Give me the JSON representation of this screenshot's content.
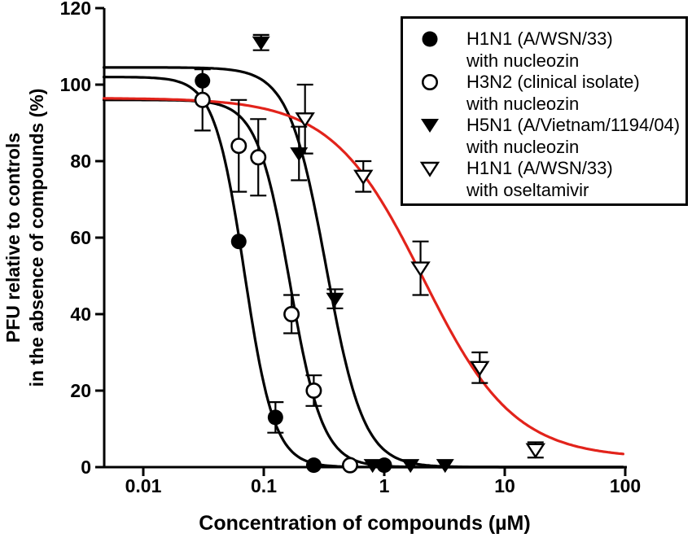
{
  "chart_data": {
    "type": "scatter",
    "title": "",
    "xlabel": "Concentration of compounds (µM)",
    "ylabel": [
      "PFU relative to controls",
      "in the absence of compounds (%)"
    ],
    "x_scale": "log",
    "xlim": [
      0.0047,
      100
    ],
    "ylim": [
      0,
      120
    ],
    "grid": false,
    "legend_position": "top-right-boxed",
    "colors": {
      "black": "#000000",
      "red": "#e2231b",
      "background": "#ffffff"
    },
    "x_ticks": [
      {
        "value": 0.01,
        "label": "0.01"
      },
      {
        "value": 0.1,
        "label": "0.1"
      },
      {
        "value": 1,
        "label": "1"
      },
      {
        "value": 10,
        "label": "10"
      },
      {
        "value": 100,
        "label": "100"
      }
    ],
    "y_ticks": [
      {
        "value": 0,
        "label": "0"
      },
      {
        "value": 20,
        "label": "20"
      },
      {
        "value": 40,
        "label": "40"
      },
      {
        "value": 60,
        "label": "60"
      },
      {
        "value": 80,
        "label": "80"
      },
      {
        "value": 100,
        "label": "100"
      },
      {
        "value": 120,
        "label": "120"
      }
    ],
    "series": [
      {
        "name": "H1N1 (A/WSN/33) with nucleozin",
        "legend_line1": "H1N1 (A/WSN/33)",
        "legend_line2": "with nucleozin",
        "marker": "filled-circle",
        "color": "#000000",
        "points": [
          {
            "x": 0.031,
            "y": 101
          },
          {
            "x": 0.062,
            "y": 59
          },
          {
            "x": 0.125,
            "y": 13,
            "err": 4
          },
          {
            "x": 0.26,
            "y": 0.5
          },
          {
            "x": 1.0,
            "y": 0.5
          }
        ],
        "fit": {
          "top": 102,
          "bottom": 0,
          "ic50": 0.069,
          "hill": 3.5,
          "color": "#000000"
        }
      },
      {
        "name": "H3N2 (clinical isolate) with nucleozin",
        "legend_line1": "H3N2 (clinical isolate)",
        "legend_line2": "with nucleozin",
        "marker": "open-circle",
        "color": "#000000",
        "points": [
          {
            "x": 0.031,
            "y": 96,
            "err": 8
          },
          {
            "x": 0.062,
            "y": 84,
            "err": 12
          },
          {
            "x": 0.09,
            "y": 81,
            "err": 10
          },
          {
            "x": 0.17,
            "y": 40,
            "err": 5
          },
          {
            "x": 0.26,
            "y": 20,
            "err": 4
          },
          {
            "x": 0.52,
            "y": 0.5
          }
        ],
        "fit": {
          "top": 96,
          "bottom": 0,
          "ic50": 0.165,
          "hill": 3.2,
          "color": "#000000"
        }
      },
      {
        "name": "H5N1 (A/Vietnam/1194/04) with nucleozin",
        "legend_line1": "H5N1 (A/Vietnam/1194/04)",
        "legend_line2": "with nucleozin",
        "marker": "filled-triangle-down",
        "color": "#000000",
        "points": [
          {
            "x": 0.095,
            "y": 111,
            "err": 2
          },
          {
            "x": 0.196,
            "y": 82,
            "err": 7
          },
          {
            "x": 0.39,
            "y": 44,
            "err": 2.5
          },
          {
            "x": 0.8,
            "y": 0.5
          },
          {
            "x": 1.65,
            "y": 0.5
          },
          {
            "x": 3.2,
            "y": 0.5
          }
        ],
        "fit": {
          "top": 104.5,
          "bottom": 0,
          "ic50": 0.33,
          "hill": 2.8,
          "color": "#000000"
        }
      },
      {
        "name": "H1N1 (A/WSN/33) with oseltamivir",
        "legend_line1": "H1N1 (A/WSN/33)",
        "legend_line2": "with oseltamivir",
        "marker": "open-triangle-down",
        "color": "#e2231b",
        "points": [
          {
            "x": 0.22,
            "y": 91,
            "err": 9
          },
          {
            "x": 0.67,
            "y": 76,
            "err": 4
          },
          {
            "x": 2.0,
            "y": 52,
            "err": 7
          },
          {
            "x": 6.2,
            "y": 26,
            "err": 4
          },
          {
            "x": 18,
            "y": 4.5,
            "err": 2
          }
        ],
        "fit": {
          "top": 96.5,
          "bottom": 2.3,
          "ic50": 2.1,
          "hill": 1.15,
          "color": "#e2231b"
        }
      }
    ]
  }
}
